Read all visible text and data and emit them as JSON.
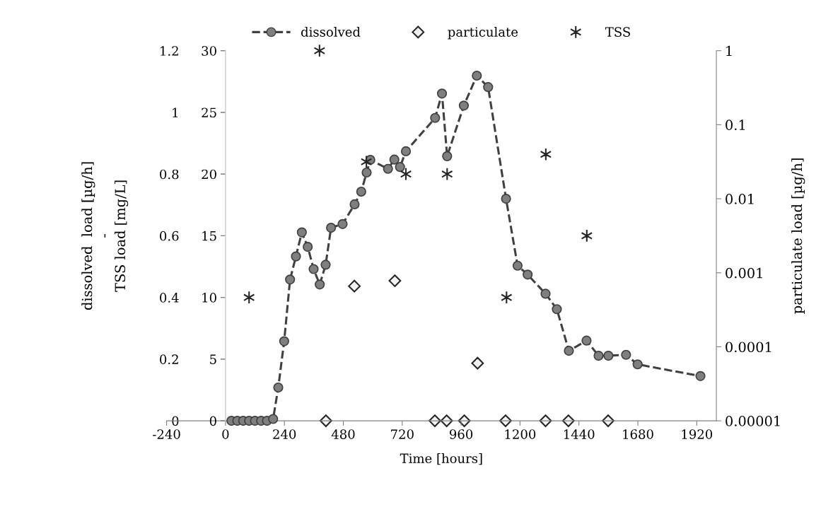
{
  "chart_data": {
    "type": "line",
    "xlabel": "Time [hours]",
    "ylabel": "dissolved  load [µg/h]\n-\nTSS load [mg/L]",
    "y3label": "particulate load [µg/h]",
    "xlim": [
      -240,
      2000
    ],
    "xticks": [
      -240,
      0,
      240,
      480,
      720,
      960,
      1200,
      1440,
      1680,
      1920
    ],
    "ylim": [
      0,
      1.2
    ],
    "yticks": [
      0,
      0.2,
      0.4,
      0.6,
      0.8,
      1,
      1.2
    ],
    "y2lim": [
      0,
      30
    ],
    "y2ticks": [
      0,
      5,
      10,
      15,
      20,
      25,
      30
    ],
    "y3lim": [
      1e-05,
      1
    ],
    "y3ticks": [
      {
        "value": 1e-05,
        "label": "0.00001"
      },
      {
        "value": 0.0001,
        "label": "0.0001"
      },
      {
        "value": 0.001,
        "label": "0.001"
      },
      {
        "value": 0.01,
        "label": "0.01"
      },
      {
        "value": 0.1,
        "label": "0.1"
      },
      {
        "value": 1,
        "label": "1"
      }
    ],
    "log": "y3",
    "grid": false,
    "legend": "top",
    "series": [
      {
        "name": "dissolved",
        "color": "#404040",
        "marker": "circle",
        "line_style": "dashed",
        "x": [
          24,
          48,
          72,
          96,
          120,
          145,
          169,
          194,
          215,
          239,
          263,
          287,
          311,
          335,
          359,
          384,
          408,
          430,
          477,
          526,
          553,
          575,
          590,
          662,
          688,
          711,
          735,
          854,
          882,
          903,
          971,
          1024,
          1070,
          1143,
          1190,
          1231,
          1304,
          1350,
          1399,
          1471,
          1520,
          1560,
          1632,
          1679,
          1935
        ],
        "values": [
          0,
          0,
          0,
          0,
          0,
          0,
          0,
          0.006,
          0.108,
          0.258,
          0.458,
          0.533,
          0.611,
          0.564,
          0.492,
          0.442,
          0.506,
          0.626,
          0.638,
          0.702,
          0.743,
          0.805,
          0.846,
          0.817,
          0.847,
          0.823,
          0.874,
          0.982,
          1.061,
          0.858,
          1.022,
          1.119,
          1.082,
          0.72,
          0.503,
          0.474,
          0.412,
          0.362,
          0.227,
          0.26,
          0.211,
          0.211,
          0.214,
          0.183,
          0.145
        ]
      },
      {
        "name": "particulate",
        "type": "scatter",
        "axis": "y3",
        "color": "#262626",
        "marker": "diamond",
        "x": [
          409,
          525,
          690,
          853,
          901,
          973,
          1027,
          1141,
          1304,
          1397,
          1559
        ],
        "values": [
          1e-05,
          0.00066,
          0.00078,
          1e-05,
          1e-05,
          1e-05,
          6e-05,
          1e-05,
          1e-05,
          1e-05,
          1e-05
        ]
      },
      {
        "name": "TSS",
        "type": "scatter",
        "axis": "y2",
        "color": "#262626",
        "marker": "cross",
        "x": [
          96,
          383,
          574,
          735,
          903,
          1145,
          1305,
          1472
        ],
        "values": [
          10,
          30,
          21,
          20,
          20,
          10,
          21.6,
          15
        ]
      }
    ]
  }
}
